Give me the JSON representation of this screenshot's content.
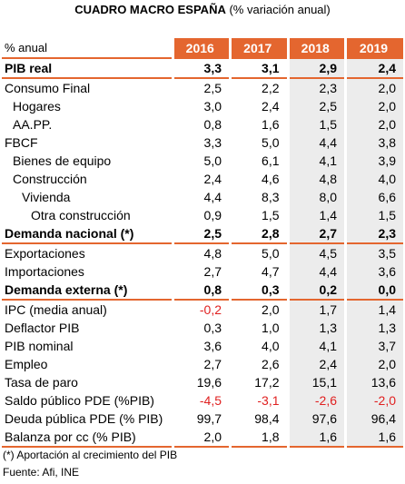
{
  "header": {
    "title_bold": "CUADRO MACRO ESPAÑA",
    "title_rest": " (% variación anual)"
  },
  "table": {
    "unit_label": "% anual",
    "years": [
      "2016",
      "2017",
      "2018",
      "2019"
    ],
    "rows": [
      {
        "label": "PIB real",
        "values": [
          "3,3",
          "3,1",
          "2,9",
          "2,4"
        ]
      },
      {
        "label": "Consumo Final",
        "values": [
          "2,5",
          "2,2",
          "2,3",
          "2,0"
        ]
      },
      {
        "label": "Hogares",
        "values": [
          "3,0",
          "2,4",
          "2,5",
          "2,0"
        ]
      },
      {
        "label": "AA.PP.",
        "values": [
          "0,8",
          "1,6",
          "1,5",
          "2,0"
        ]
      },
      {
        "label": "FBCF",
        "values": [
          "3,3",
          "5,0",
          "4,4",
          "3,8"
        ]
      },
      {
        "label": "Bienes de equipo",
        "values": [
          "5,0",
          "6,1",
          "4,1",
          "3,9"
        ]
      },
      {
        "label": "Construcción",
        "values": [
          "2,4",
          "4,6",
          "4,8",
          "4,0"
        ]
      },
      {
        "label": "Vivienda",
        "values": [
          "4,4",
          "8,3",
          "8,0",
          "6,6"
        ]
      },
      {
        "label": "Otra construcción",
        "values": [
          "0,9",
          "1,5",
          "1,4",
          "1,5"
        ]
      },
      {
        "label": "Demanda nacional (*)",
        "values": [
          "2,5",
          "2,8",
          "2,7",
          "2,3"
        ]
      },
      {
        "label": "Exportaciones",
        "values": [
          "4,8",
          "5,0",
          "4,5",
          "3,5"
        ]
      },
      {
        "label": "Importaciones",
        "values": [
          "2,7",
          "4,7",
          "4,4",
          "3,6"
        ]
      },
      {
        "label": "Demanda externa (*)",
        "values": [
          "0,8",
          "0,3",
          "0,2",
          "0,0"
        ]
      },
      {
        "label": "IPC (media anual)",
        "values": [
          "-0,2",
          "2,0",
          "1,7",
          "1,4"
        ]
      },
      {
        "label": "Deflactor PIB",
        "values": [
          "0,3",
          "1,0",
          "1,3",
          "1,3"
        ]
      },
      {
        "label": "PIB nominal",
        "values": [
          "3,6",
          "4,0",
          "4,1",
          "3,7"
        ]
      },
      {
        "label": "Empleo",
        "values": [
          "2,7",
          "2,6",
          "2,4",
          "2,0"
        ]
      },
      {
        "label": "Tasa de paro",
        "values": [
          "19,6",
          "17,2",
          "15,1",
          "13,6"
        ]
      },
      {
        "label": "Saldo público PDE (%PIB)",
        "values": [
          "-4,5",
          "-3,1",
          "-2,6",
          "-2,0"
        ]
      },
      {
        "label": "Deuda pública PDE (% PIB)",
        "values": [
          "99,7",
          "98,4",
          "97,6",
          "96,4"
        ]
      },
      {
        "label": "Balanza por cc (% PIB)",
        "values": [
          "2,0",
          "1,8",
          "1,6",
          "1,6"
        ]
      }
    ]
  },
  "footnotes": {
    "note": "(*) Aportación al crecimiento del PIB",
    "source": "Fuente: Afi, INE"
  },
  "colors": {
    "accent": "#e4662f",
    "forecast_bg": "#ececec",
    "negative": "#e02020"
  }
}
